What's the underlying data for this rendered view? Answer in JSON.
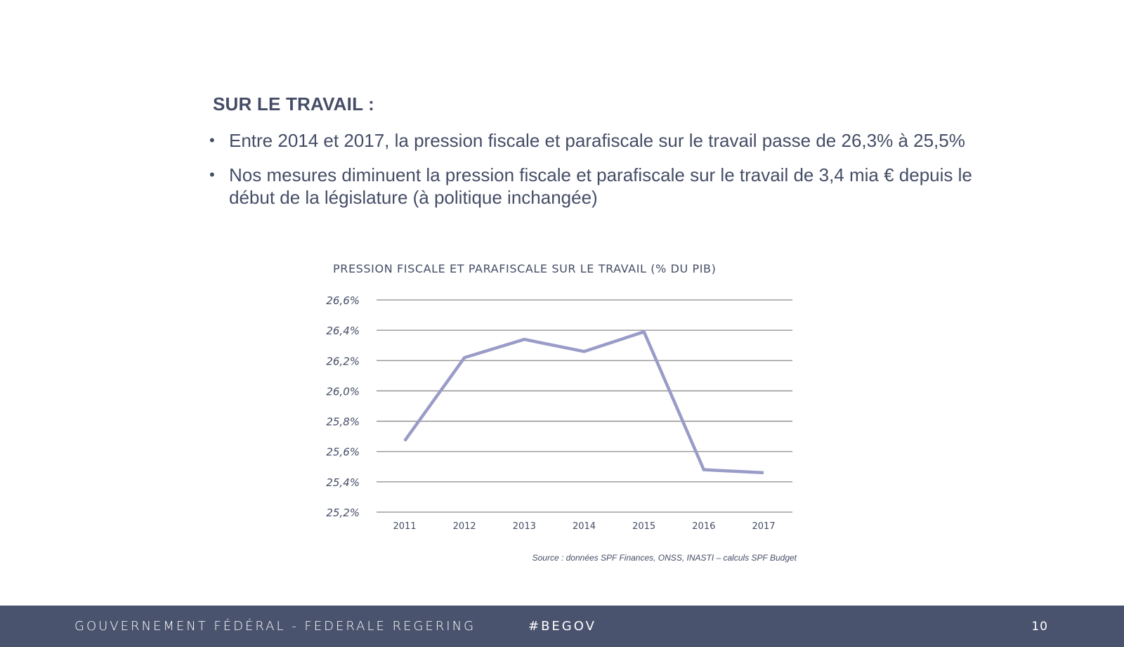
{
  "slide": {
    "heading": "SUR LE TRAVAIL :",
    "bullets": [
      "Entre 2014 et 2017, la pression fiscale et parafiscale sur le travail passe de 26,3% à 25,5%",
      "Nos mesures diminuent la pression fiscale et parafiscale sur le travail de 3,4 mia € depuis le début de la législature (à politique inchangée)"
    ],
    "bullet_glyph": "•"
  },
  "chart_data": {
    "type": "line",
    "title": "PRESSION FISCALE ET PARAFISCALE SUR LE TRAVAIL (% DU PIB)",
    "categories": [
      "2011",
      "2012",
      "2013",
      "2014",
      "2015",
      "2016",
      "2017"
    ],
    "values": [
      25.67,
      26.22,
      26.34,
      26.26,
      26.39,
      25.48,
      25.46
    ],
    "ylim": [
      25.2,
      26.6
    ],
    "yticks": [
      26.6,
      26.4,
      26.2,
      26.0,
      25.8,
      25.6,
      25.4,
      25.2
    ],
    "ytick_labels": [
      "26,6%",
      "26,4%",
      "26,2%",
      "26,0%",
      "25,8%",
      "25,6%",
      "25,4%",
      "25,2%"
    ],
    "grid": true,
    "line_color": "#9a9cc8",
    "grid_color": "#8a8a8a",
    "source": "Source : données SPF Finances, ONSS, INASTI – calculs SPF Budget"
  },
  "footer": {
    "left": "GOUVERNEMENT FÉDÉRAL - FEDERALE REGERING",
    "tag": "#BEGOV",
    "page": "10",
    "background": "#4a536e"
  }
}
